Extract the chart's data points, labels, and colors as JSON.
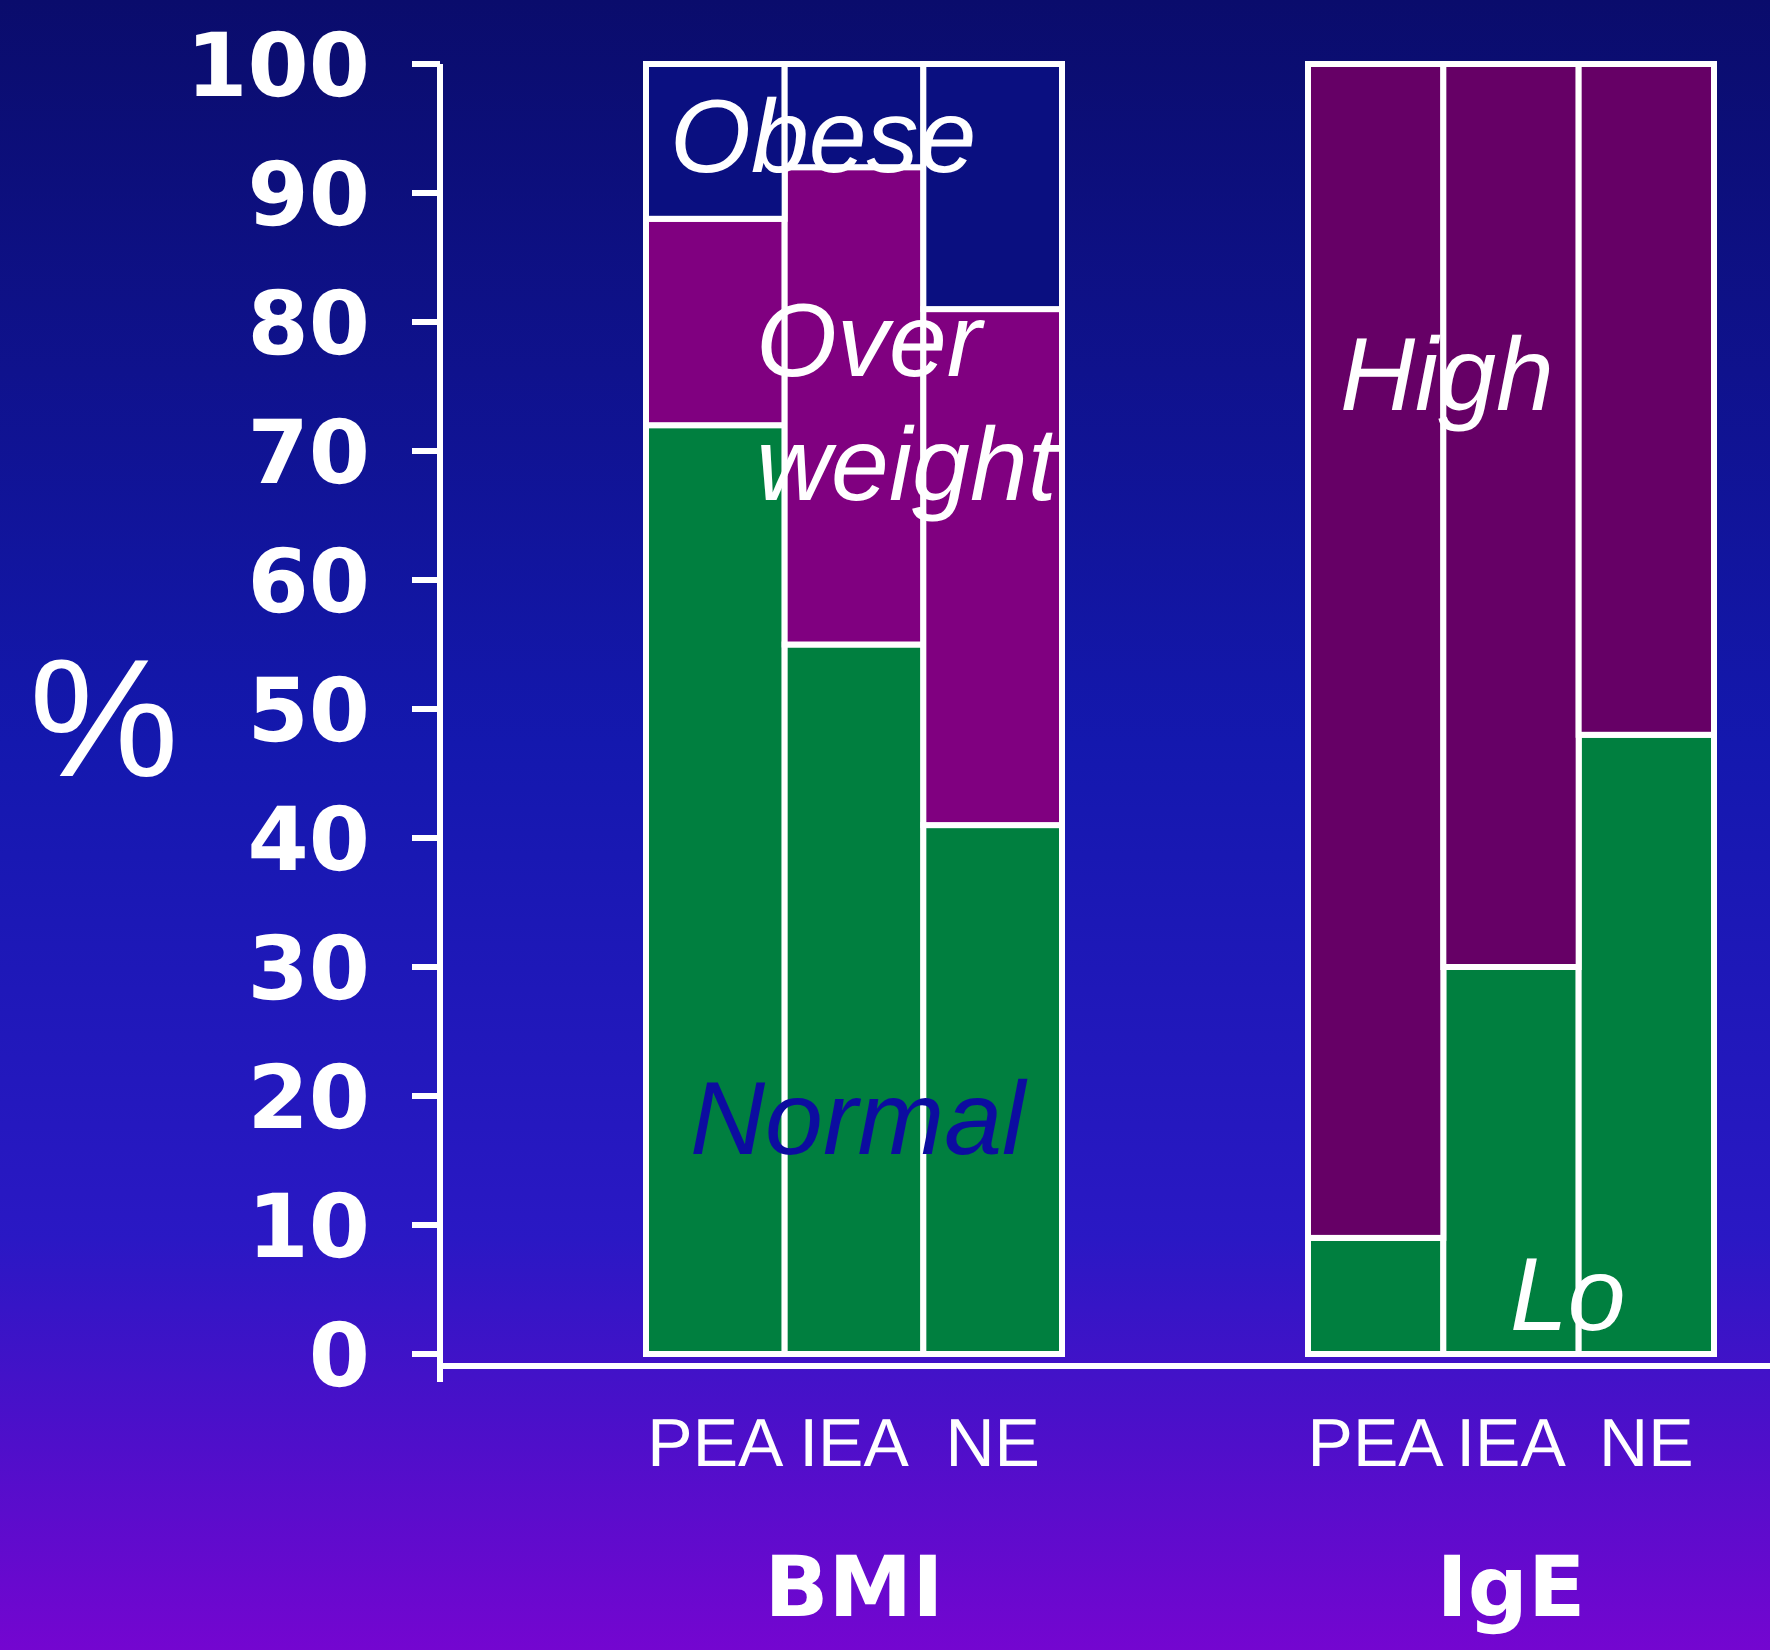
{
  "chart_data": [
    {
      "type": "bar",
      "stacked": true,
      "categories": [
        "PEA",
        "IEA",
        "NE"
      ],
      "xlabel": "BMI",
      "ylabel": "%",
      "ylim": [
        0,
        100
      ],
      "yticks": [
        0,
        10,
        20,
        30,
        40,
        50,
        60,
        70,
        80,
        90,
        100
      ],
      "series": [
        {
          "name": "Normal",
          "color": "#007f3f",
          "values": [
            72,
            55,
            41
          ]
        },
        {
          "name": "Over weight",
          "color": "#800080",
          "values": [
            16,
            37,
            40
          ]
        },
        {
          "name": "Obese",
          "color": "#0a0f80",
          "values": [
            12,
            8,
            19
          ]
        }
      ]
    },
    {
      "type": "bar",
      "stacked": true,
      "categories": [
        "PEA",
        "IEA",
        "NE"
      ],
      "xlabel": "IgE",
      "ylim": [
        0,
        100
      ],
      "tick_labels": "x",
      "series": [
        {
          "name": "Lo",
          "color": "#007f3f",
          "values": [
            9,
            30,
            48
          ]
        },
        {
          "name": "High",
          "color": "#660066",
          "values": [
            91,
            70,
            52
          ]
        }
      ]
    }
  ]
}
